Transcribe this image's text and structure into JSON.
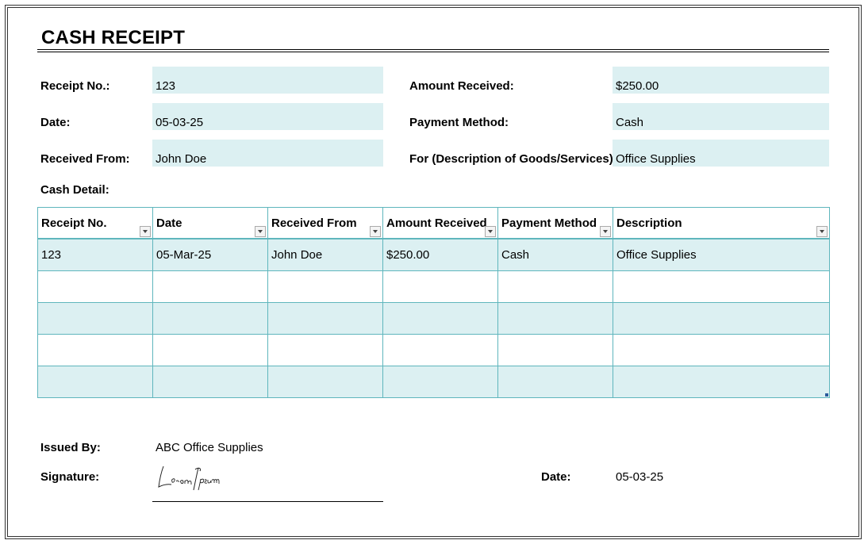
{
  "title": "CASH RECEIPT",
  "receipt": {
    "receipt_no_label": "Receipt No.:",
    "receipt_no": "123",
    "date_label": "Date:",
    "date": "05-03-25",
    "received_from_label": "Received From:",
    "received_from": "John Doe",
    "amount_label": "Amount Received:",
    "amount": "$250.00",
    "payment_method_label": "Payment Method:",
    "payment_method": "Cash",
    "for_label": "For (Description of Goods/Services):",
    "for": "Office Supplies"
  },
  "cash_detail": {
    "label": "Cash Detail:",
    "headers": [
      "Receipt No.",
      "Date",
      "Received From",
      "Amount Received",
      "Payment Method",
      "Description"
    ],
    "rows": [
      [
        "123",
        "05-Mar-25",
        "John Doe",
        "$250.00",
        "Cash",
        "Office Supplies"
      ],
      [
        "",
        "",
        "",
        "",
        "",
        ""
      ],
      [
        "",
        "",
        "",
        "",
        "",
        ""
      ],
      [
        "",
        "",
        "",
        "",
        "",
        ""
      ],
      [
        "",
        "",
        "",
        "",
        "",
        ""
      ]
    ]
  },
  "footer": {
    "issued_by_label": "Issued By:",
    "issued_by": "ABC Office Supplies",
    "signature_label": "Signature:",
    "signature_text": "Lorem Ipsum",
    "date_label": "Date:",
    "date": "05-03-25"
  },
  "colors": {
    "field_fill": "#dcf0f2",
    "table_border": "#5fb6bd"
  }
}
